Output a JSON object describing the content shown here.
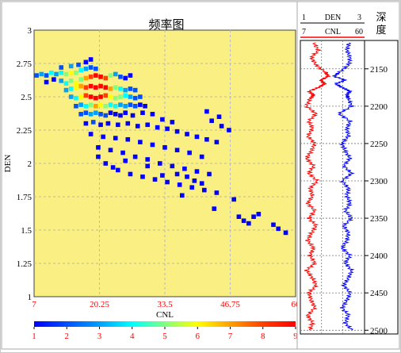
{
  "colors": {
    "plot_bg": "#f9ef82",
    "grid": "#b9b9b9",
    "tick_red": "#ff0000",
    "den_curve": "#0000ff",
    "cnl_curve": "#ff0000",
    "sep_line": "#000000"
  },
  "chart_data": [
    {
      "type": "heatmap",
      "title": "频率图",
      "xlabel": "CNL",
      "ylabel": "DEN",
      "xlim": [
        7,
        60
      ],
      "ylim": [
        1,
        3
      ],
      "grid": true,
      "x_ticks": [
        "7",
        "20.25",
        "33.5",
        "46.75",
        "60"
      ],
      "y_ticks": [
        "1",
        "1.25",
        "1.5",
        "1.75",
        "2",
        "2.25",
        "2.5",
        "2.75",
        "3"
      ],
      "x_tick_values": [
        7,
        20.25,
        33.5,
        46.75,
        60
      ],
      "y_tick_values": [
        1,
        1.25,
        1.5,
        1.75,
        2,
        2.25,
        2.5,
        2.75,
        3
      ],
      "colorbar": {
        "min": 1,
        "max": 9,
        "labels": [
          "1",
          "2",
          "3",
          "4",
          "5",
          "6",
          "7",
          "8",
          "9"
        ],
        "stops": [
          "#0000ff",
          "#0050ff",
          "#00a0ff",
          "#00ffff",
          "#80ff80",
          "#ffff00",
          "#ffa000",
          "#ff4000",
          "#ff0000"
        ]
      },
      "bins": [
        [
          7.5,
          2.66,
          2
        ],
        [
          8.5,
          2.67,
          3
        ],
        [
          9.5,
          2.66,
          2
        ],
        [
          10.5,
          2.68,
          4
        ],
        [
          11.5,
          2.67,
          3
        ],
        [
          12.5,
          2.68,
          4
        ],
        [
          13.5,
          2.67,
          5
        ],
        [
          14.5,
          2.68,
          6
        ],
        [
          15.5,
          2.68,
          5
        ],
        [
          16.5,
          2.7,
          4
        ],
        [
          17.5,
          2.71,
          3
        ],
        [
          18.5,
          2.72,
          2
        ],
        [
          19.5,
          2.71,
          2
        ],
        [
          17.5,
          2.76,
          1
        ],
        [
          18.5,
          2.78,
          1
        ],
        [
          16.0,
          2.74,
          2
        ],
        [
          14.5,
          2.73,
          3
        ],
        [
          12.5,
          2.72,
          2
        ],
        [
          11.0,
          2.63,
          1
        ],
        [
          9.5,
          2.61,
          1
        ],
        [
          12.5,
          2.62,
          3
        ],
        [
          13.5,
          2.6,
          4
        ],
        [
          14.5,
          2.62,
          5
        ],
        [
          15.5,
          2.6,
          6
        ],
        [
          16.5,
          2.63,
          5
        ],
        [
          17.5,
          2.64,
          7
        ],
        [
          18.5,
          2.65,
          8
        ],
        [
          19.5,
          2.66,
          9
        ],
        [
          20.5,
          2.65,
          9
        ],
        [
          21.5,
          2.64,
          8
        ],
        [
          22.5,
          2.66,
          5
        ],
        [
          23.5,
          2.67,
          3
        ],
        [
          24.5,
          2.65,
          2
        ],
        [
          25.5,
          2.64,
          1
        ],
        [
          26.5,
          2.66,
          1
        ],
        [
          13.5,
          2.55,
          3
        ],
        [
          14.5,
          2.56,
          4
        ],
        [
          15.5,
          2.57,
          6
        ],
        [
          16.5,
          2.58,
          7
        ],
        [
          17.5,
          2.57,
          8
        ],
        [
          18.5,
          2.58,
          9
        ],
        [
          19.5,
          2.57,
          9
        ],
        [
          20.5,
          2.58,
          9
        ],
        [
          21.5,
          2.57,
          9
        ],
        [
          22.5,
          2.56,
          7
        ],
        [
          23.5,
          2.57,
          5
        ],
        [
          24.5,
          2.56,
          4
        ],
        [
          25.5,
          2.55,
          3
        ],
        [
          26.5,
          2.56,
          2
        ],
        [
          27.5,
          2.55,
          2
        ],
        [
          14.5,
          2.5,
          3
        ],
        [
          15.5,
          2.49,
          4
        ],
        [
          16.5,
          2.5,
          6
        ],
        [
          17.5,
          2.51,
          8
        ],
        [
          18.5,
          2.5,
          9
        ],
        [
          19.5,
          2.49,
          9
        ],
        [
          20.5,
          2.5,
          9
        ],
        [
          21.5,
          2.51,
          8
        ],
        [
          22.5,
          2.5,
          6
        ],
        [
          23.5,
          2.49,
          5
        ],
        [
          24.5,
          2.5,
          5
        ],
        [
          25.5,
          2.51,
          4
        ],
        [
          26.5,
          2.5,
          3
        ],
        [
          27.5,
          2.49,
          2
        ],
        [
          28.5,
          2.5,
          2
        ],
        [
          15.5,
          2.43,
          2
        ],
        [
          16.5,
          2.44,
          3
        ],
        [
          17.5,
          2.43,
          4
        ],
        [
          18.5,
          2.44,
          5
        ],
        [
          19.5,
          2.43,
          7
        ],
        [
          20.5,
          2.44,
          6
        ],
        [
          21.5,
          2.43,
          5
        ],
        [
          22.5,
          2.44,
          4
        ],
        [
          23.5,
          2.43,
          4
        ],
        [
          24.5,
          2.44,
          3
        ],
        [
          25.5,
          2.43,
          3
        ],
        [
          26.5,
          2.44,
          2
        ],
        [
          27.5,
          2.43,
          2
        ],
        [
          28.5,
          2.44,
          1
        ],
        [
          29.5,
          2.43,
          1
        ],
        [
          16.5,
          2.37,
          2
        ],
        [
          17.5,
          2.38,
          2
        ],
        [
          18.5,
          2.37,
          3
        ],
        [
          19.5,
          2.38,
          3
        ],
        [
          20.5,
          2.37,
          2
        ],
        [
          21.5,
          2.36,
          2
        ],
        [
          22.5,
          2.38,
          1
        ],
        [
          23.5,
          2.37,
          1
        ],
        [
          24.5,
          2.36,
          1
        ],
        [
          25.5,
          2.38,
          1
        ],
        [
          27.0,
          2.36,
          1
        ],
        [
          29.0,
          2.38,
          1
        ],
        [
          31.0,
          2.37,
          1
        ],
        [
          33.0,
          2.33,
          1
        ],
        [
          35.0,
          2.31,
          1
        ],
        [
          17.5,
          2.3,
          1
        ],
        [
          19.0,
          2.31,
          2
        ],
        [
          20.5,
          2.29,
          1
        ],
        [
          22.0,
          2.3,
          1
        ],
        [
          24.0,
          2.29,
          1
        ],
        [
          26.0,
          2.3,
          1
        ],
        [
          28.0,
          2.28,
          1
        ],
        [
          30.0,
          2.29,
          1
        ],
        [
          32.0,
          2.27,
          1
        ],
        [
          34.0,
          2.26,
          1
        ],
        [
          36.0,
          2.24,
          1
        ],
        [
          38.0,
          2.22,
          1
        ],
        [
          40.0,
          2.2,
          1
        ],
        [
          42.0,
          2.18,
          1
        ],
        [
          44.0,
          2.16,
          1
        ],
        [
          18.5,
          2.22,
          1
        ],
        [
          21.0,
          2.2,
          1
        ],
        [
          23.5,
          2.19,
          1
        ],
        [
          26.0,
          2.18,
          1
        ],
        [
          28.5,
          2.16,
          1
        ],
        [
          31.0,
          2.14,
          1
        ],
        [
          33.5,
          2.12,
          1
        ],
        [
          36.0,
          2.1,
          1
        ],
        [
          38.5,
          2.08,
          1
        ],
        [
          41.0,
          2.05,
          1
        ],
        [
          20.0,
          2.12,
          1
        ],
        [
          22.5,
          2.1,
          1
        ],
        [
          25.0,
          2.08,
          1
        ],
        [
          27.5,
          2.05,
          1
        ],
        [
          30.0,
          2.03,
          1
        ],
        [
          32.5,
          2.0,
          1
        ],
        [
          35.0,
          1.98,
          1
        ],
        [
          37.5,
          1.96,
          1
        ],
        [
          40.0,
          1.94,
          1
        ],
        [
          42.5,
          1.92,
          1
        ],
        [
          24.0,
          1.95,
          1
        ],
        [
          26.5,
          1.92,
          1
        ],
        [
          29.0,
          1.9,
          1
        ],
        [
          31.5,
          1.88,
          1
        ],
        [
          34.0,
          1.86,
          1
        ],
        [
          36.5,
          1.84,
          1
        ],
        [
          39.0,
          1.82,
          1
        ],
        [
          41.5,
          1.8,
          1
        ],
        [
          44.0,
          1.78,
          1
        ],
        [
          37.0,
          1.76,
          1
        ],
        [
          43.0,
          2.32,
          1
        ],
        [
          45.0,
          2.28,
          1
        ],
        [
          46.5,
          2.25,
          1
        ],
        [
          44.5,
          2.35,
          1
        ],
        [
          42.0,
          2.39,
          1
        ],
        [
          43.5,
          1.66,
          1
        ],
        [
          47.5,
          1.73,
          1
        ],
        [
          48.5,
          1.6,
          1
        ],
        [
          49.5,
          1.57,
          1
        ],
        [
          51.5,
          1.6,
          1
        ],
        [
          52.5,
          1.62,
          1
        ],
        [
          55.5,
          1.54,
          1
        ],
        [
          58.0,
          1.48,
          1
        ],
        [
          56.5,
          1.51,
          1
        ],
        [
          50.5,
          1.55,
          1
        ],
        [
          36.0,
          1.92,
          1
        ],
        [
          38.0,
          1.9,
          1
        ],
        [
          39.5,
          1.87,
          1
        ],
        [
          41.0,
          1.85,
          1
        ],
        [
          30.0,
          1.98,
          1
        ],
        [
          25.5,
          2.02,
          1
        ],
        [
          20.0,
          2.05,
          1
        ],
        [
          21.5,
          2.0,
          1
        ],
        [
          23.0,
          1.97,
          1
        ],
        [
          33.0,
          1.91,
          1
        ]
      ]
    },
    {
      "type": "line",
      "track_header": {
        "den_min": "1",
        "den_label": "DEN",
        "den_max": "3",
        "cnl_min": "7",
        "cnl_label": "CNL",
        "cnl_max": "60",
        "depth_title": "深度"
      },
      "depth_range": [
        2112,
        2505
      ],
      "depth_ticks": [
        "2150",
        "2200",
        "2250",
        "2300",
        "2350",
        "2400",
        "2450",
        "2500"
      ],
      "depth_tick_values": [
        2150,
        2200,
        2250,
        2300,
        2350,
        2400,
        2450,
        2500
      ],
      "series": [
        {
          "name": "DEN",
          "color": "#0000ff",
          "xlim": [
            1,
            3
          ],
          "depth": [
            2115,
            2125,
            2135,
            2145,
            2155,
            2160,
            2165,
            2170,
            2175,
            2180,
            2185,
            2190,
            2200,
            2210,
            2220,
            2230,
            2240,
            2250,
            2260,
            2270,
            2280,
            2290,
            2300,
            2310,
            2320,
            2330,
            2340,
            2350,
            2360,
            2370,
            2380,
            2390,
            2400,
            2410,
            2420,
            2430,
            2440,
            2450,
            2460,
            2470,
            2480,
            2490,
            2500
          ],
          "values": [
            2.52,
            2.45,
            2.55,
            2.5,
            2.2,
            2.05,
            2.4,
            2.1,
            2.3,
            2.55,
            2.45,
            2.5,
            2.6,
            2.2,
            2.55,
            2.45,
            2.5,
            2.3,
            2.4,
            2.55,
            2.35,
            2.6,
            2.3,
            2.5,
            2.45,
            2.55,
            2.4,
            2.6,
            2.35,
            2.5,
            2.45,
            2.3,
            2.55,
            2.4,
            2.6,
            2.5,
            2.35,
            2.55,
            2.45,
            2.3,
            2.5,
            2.4,
            2.6
          ]
        },
        {
          "name": "CNL",
          "color": "#ff0000",
          "xlim": [
            7,
            60
          ],
          "depth": [
            2115,
            2125,
            2135,
            2145,
            2155,
            2160,
            2165,
            2170,
            2175,
            2180,
            2185,
            2190,
            2200,
            2210,
            2220,
            2230,
            2240,
            2250,
            2260,
            2270,
            2280,
            2290,
            2300,
            2310,
            2320,
            2330,
            2340,
            2350,
            2360,
            2370,
            2380,
            2390,
            2400,
            2410,
            2420,
            2430,
            2440,
            2450,
            2460,
            2470,
            2480,
            2490,
            2500
          ],
          "values": [
            18,
            22,
            16,
            20,
            28,
            30,
            24,
            27,
            22,
            14,
            18,
            15,
            12,
            20,
            14,
            17,
            13,
            19,
            16,
            12,
            18,
            14,
            21,
            15,
            17,
            13,
            19,
            14,
            20,
            16,
            13,
            18,
            15,
            19,
            12,
            17,
            20,
            14,
            16,
            19,
            13,
            17,
            15
          ]
        }
      ]
    }
  ]
}
